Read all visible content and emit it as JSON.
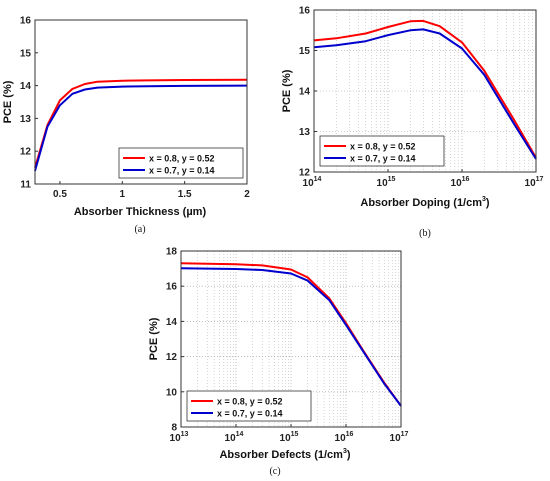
{
  "chart_data": [
    {
      "type": "line",
      "panel": "(a)",
      "xlabel": "Absorber Thickness (µm)",
      "ylabel": "PCE (%)",
      "xscale": "linear",
      "xlim": [
        0.3,
        2
      ],
      "ylim": [
        11,
        16
      ],
      "xticks": [
        0.5,
        1,
        1.5,
        2
      ],
      "yticks": [
        11,
        12,
        13,
        14,
        15,
        16
      ],
      "grid": false,
      "legend_position": "bottom-right",
      "series": [
        {
          "name": "x = 0.8, y = 0.52",
          "color": "#ff0000",
          "x": [
            0.3,
            0.4,
            0.5,
            0.6,
            0.7,
            0.8,
            1.0,
            1.2,
            1.5,
            2.0
          ],
          "y": [
            11.5,
            12.8,
            13.55,
            13.9,
            14.05,
            14.12,
            14.15,
            14.16,
            14.17,
            14.18
          ]
        },
        {
          "name": "x = 0.7, y = 0.14",
          "color": "#0000cc",
          "x": [
            0.3,
            0.4,
            0.5,
            0.6,
            0.7,
            0.8,
            1.0,
            1.2,
            1.5,
            2.0
          ],
          "y": [
            11.4,
            12.75,
            13.4,
            13.75,
            13.88,
            13.94,
            13.97,
            13.98,
            13.99,
            14.0
          ]
        }
      ]
    },
    {
      "type": "line",
      "panel": "(b)",
      "xlabel_main": "Absorber Doping (1/cm",
      "xlabel_sup": "3",
      "xlabel_end": ")",
      "ylabel": "PCE (%)",
      "xscale": "log",
      "xlim": [
        100000000000000.0,
        1e+17
      ],
      "ylim": [
        12,
        16
      ],
      "xtick_base": "10",
      "xtick_exponents": [
        "14",
        "15",
        "16",
        "17"
      ],
      "yticks": [
        12,
        13,
        14,
        15,
        16
      ],
      "grid": true,
      "legend_position": "bottom-left",
      "series": [
        {
          "name": "x = 0.8, y = 0.52",
          "color": "#ff0000",
          "x": [
            100000000000000.0,
            200000000000000.0,
            500000000000000.0,
            1000000000000000.0,
            2000000000000000.0,
            3000000000000000.0,
            5000000000000000.0,
            1e+16,
            2e+16,
            5e+16,
            1e+17
          ],
          "y": [
            15.25,
            15.3,
            15.42,
            15.58,
            15.72,
            15.73,
            15.6,
            15.2,
            14.5,
            13.3,
            12.35
          ]
        },
        {
          "name": "x = 0.7, y = 0.14",
          "color": "#0000cc",
          "x": [
            100000000000000.0,
            200000000000000.0,
            500000000000000.0,
            1000000000000000.0,
            2000000000000000.0,
            3000000000000000.0,
            5000000000000000.0,
            1e+16,
            2e+16,
            5e+16,
            1e+17
          ],
          "y": [
            15.08,
            15.13,
            15.23,
            15.38,
            15.5,
            15.52,
            15.42,
            15.05,
            14.4,
            13.2,
            12.32
          ]
        }
      ]
    },
    {
      "type": "line",
      "panel": "(c)",
      "xlabel_main": "Absorber Defects (1/cm",
      "xlabel_sup": "3",
      "xlabel_end": ")",
      "ylabel": "PCE (%)",
      "xscale": "log",
      "xlim": [
        10000000000000.0,
        1e+17
      ],
      "ylim": [
        8,
        18
      ],
      "xtick_base": "10",
      "xtick_exponents": [
        "13",
        "14",
        "15",
        "16",
        "17"
      ],
      "yticks": [
        8,
        10,
        12,
        14,
        16,
        18
      ],
      "grid": true,
      "legend_position": "bottom-left",
      "series": [
        {
          "name": "x = 0.8, y = 0.52",
          "color": "#ff0000",
          "x": [
            10000000000000.0,
            30000000000000.0,
            100000000000000.0,
            300000000000000.0,
            1000000000000000.0,
            2000000000000000.0,
            5000000000000000.0,
            1e+16,
            2e+16,
            5e+16,
            1e+17
          ],
          "y": [
            17.3,
            17.28,
            17.25,
            17.18,
            16.95,
            16.5,
            15.3,
            13.9,
            12.4,
            10.5,
            9.2
          ]
        },
        {
          "name": "x = 0.7, y = 0.14",
          "color": "#0000cc",
          "x": [
            10000000000000.0,
            30000000000000.0,
            100000000000000.0,
            300000000000000.0,
            1000000000000000.0,
            2000000000000000.0,
            5000000000000000.0,
            1e+16,
            2e+16,
            5e+16,
            1e+17
          ],
          "y": [
            17.02,
            17.0,
            16.98,
            16.92,
            16.72,
            16.32,
            15.2,
            13.8,
            12.35,
            10.45,
            9.2
          ]
        }
      ]
    }
  ]
}
